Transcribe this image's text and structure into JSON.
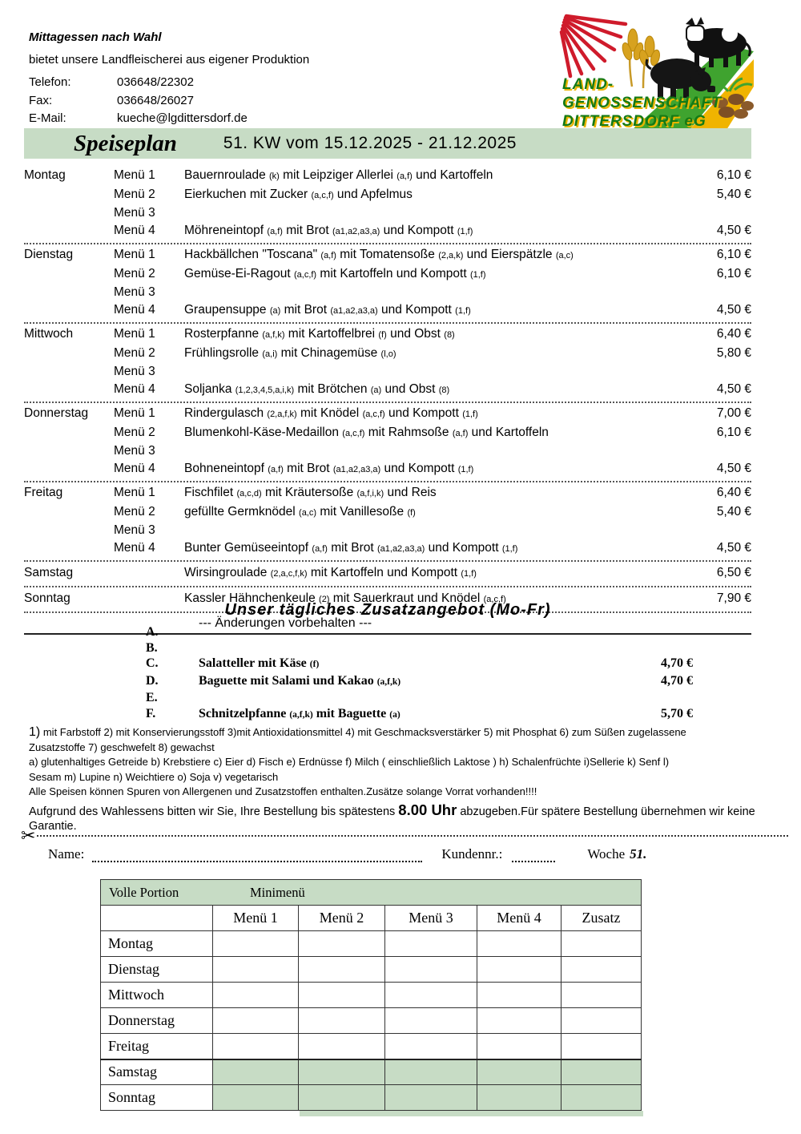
{
  "colors": {
    "green": "#c7dcc5",
    "logo_green": "#157a15",
    "logo_yellow": "#e9b400",
    "ray_red": "#cf1b2b"
  },
  "header": {
    "title": "Mittagessen nach Wahl",
    "subtitle": "bietet unsere Landfleischerei aus eigener Produktion",
    "contact": [
      {
        "label": "Telefon:",
        "value": "036648/22302"
      },
      {
        "label": "Fax:",
        "value": "036648/26027"
      },
      {
        "label": "E-Mail:",
        "value": "kueche@lgdittersdorf.de"
      }
    ],
    "logo_lines": [
      "LAND-",
      "GENOSSENSCHAFT",
      "DITTERSDORF eG"
    ],
    "logo_icons": [
      "sun-rays-icon",
      "wheat-icon",
      "pig-icon",
      "cow-icon",
      "potatoes-icon"
    ]
  },
  "banner": {
    "title": "Speiseplan",
    "week": "51. KW vom 15.12.2025 - 21.12.2025"
  },
  "menu": {
    "days": [
      {
        "day": "Montag",
        "rows": [
          {
            "label": "Menü 1",
            "desc": "Bauernroulade (k) mit Leipziger Allerlei (a,f) und Kartoffeln",
            "price": "6,10 €"
          },
          {
            "label": "Menü 2",
            "desc": "Eierkuchen mit Zucker (a,c,f) und Apfelmus",
            "price": "5,40 €"
          },
          {
            "label": "Menü 3",
            "desc": "",
            "price": ""
          },
          {
            "label": "Menü 4",
            "desc": "Möhreneintopf (a,f) mit Brot (a1,a2,a3,a) und Kompott (1,f)",
            "price": "4,50 €"
          }
        ]
      },
      {
        "day": "Dienstag",
        "rows": [
          {
            "label": "Menü 1",
            "desc": "Hackbällchen \"Toscana\" (a,f) mit Tomatensoße (2,a,k) und Eierspätzle (a,c)",
            "price": "6,10 €"
          },
          {
            "label": "Menü 2",
            "desc": "Gemüse-Ei-Ragout (a,c,f) mit Kartoffeln und Kompott (1,f)",
            "price": "6,10 €"
          },
          {
            "label": "Menü 3",
            "desc": "",
            "price": ""
          },
          {
            "label": "Menü 4",
            "desc": "Graupensuppe (a) mit Brot (a1,a2,a3,a) und Kompott (1,f)",
            "price": "4,50 €"
          }
        ]
      },
      {
        "day": "Mittwoch",
        "rows": [
          {
            "label": "Menü 1",
            "desc": "Rosterpfanne (a,f,k) mit Kartoffelbrei (f) und Obst (8)",
            "price": "6,40 €"
          },
          {
            "label": "Menü 2",
            "desc": "Frühlingsrolle (a,i) mit Chinagemüse (l,o)",
            "price": "5,80 €"
          },
          {
            "label": "Menü 3",
            "desc": "",
            "price": ""
          },
          {
            "label": "Menü 4",
            "desc": "Soljanka (1,2,3,4,5,a,i,k) mit Brötchen (a) und Obst (8)",
            "price": "4,50 €"
          }
        ]
      },
      {
        "day": "Donnerstag",
        "rows": [
          {
            "label": "Menü 1",
            "desc": "Rindergulasch (2,a,f,k) mit Knödel (a,c,f) und Kompott (1,f)",
            "price": "7,00 €"
          },
          {
            "label": "Menü 2",
            "desc": "Blumenkohl-Käse-Medaillon (a,c,f) mit Rahmsoße (a,f) und Kartoffeln",
            "price": "6,10 €"
          },
          {
            "label": "Menü 3",
            "desc": "",
            "price": ""
          },
          {
            "label": "Menü 4",
            "desc": "Bohneneintopf (a,f) mit Brot (a1,a2,a3,a) und Kompott (1,f)",
            "price": "4,50 €"
          }
        ]
      },
      {
        "day": "Freitag",
        "rows": [
          {
            "label": "Menü 1",
            "desc": "Fischfilet (a,c,d) mit Kräutersoße (a,f,i,k) und Reis",
            "price": "6,40 €"
          },
          {
            "label": "Menü 2",
            "desc": "gefüllte Germknödel  (a,c) mit Vanillesoße (f)",
            "price": "5,40 €"
          },
          {
            "label": "Menü 3",
            "desc": "",
            "price": ""
          },
          {
            "label": "Menü 4",
            "desc": "Bunter Gemüseeintopf (a,f) mit Brot (a1,a2,a3,a) und Kompott (1,f)",
            "price": "4,50 €"
          }
        ]
      },
      {
        "day": "Samstag",
        "rows": [
          {
            "label": "",
            "desc": "Wirsingroulade (2,a,c,f,k) mit Kartoffeln und Kompott (1,f)",
            "price": "6,50 €"
          }
        ]
      },
      {
        "day": "Sonntag",
        "rows": [
          {
            "label": "",
            "desc": "Kassler Hähnchenkeule (2) mit Sauerkraut und Knödel (a,c,f)",
            "price": "7,90 €"
          }
        ]
      }
    ],
    "notice": "--- Änderungen vorbehalten ---"
  },
  "extras": {
    "title": "Unser tägliches Zusatzangebot (Mo-Fr)",
    "items": [
      {
        "letter": "A.",
        "name": "",
        "price": ""
      },
      {
        "letter": "B.",
        "name": "",
        "price": ""
      },
      {
        "letter": "C.",
        "name": "Salatteller mit Käse (f)",
        "price": "4,70 €"
      },
      {
        "letter": "D.",
        "name": "Baguette mit Salami und Kakao (a,f,k)",
        "price": "4,70 €"
      },
      {
        "letter": "E.",
        "name": "",
        "price": ""
      },
      {
        "letter": "F.",
        "name": "Schnitzelpfanne (a,f,k) mit Baguette (a)",
        "price": "5,70 €"
      }
    ]
  },
  "footnotes": {
    "line1_big": "1)",
    "line1_rest": "  mit Farbstoff 2)  mit Konservierungsstoff 3)mit Antioxidationsmittel 4)  mit Geschmacksverstärker 5)  mit Phosphat 6)  zum Süßen zugelassene",
    "line2": "Zusatzstoffe 7)  geschwefelt 8)  gewachst",
    "line3": "a)  glutenhaltiges Getreide b)  Krebstiere c)  Eier d)  Fisch e)  Erdnüsse f)  Milch ( einschließlich Laktose ) h)  Schalenfrüchte i)Sellerie k)  Senf l)",
    "line4": "Sesam m)  Lupine n)  Weichtiere o)  Soja v)  vegetarisch",
    "line5": "Alle Speisen können Spuren von Allergenen und Zusatzstoffen enthalten.Zusätze solange Vorrat vorhanden!!!!",
    "last_pre": "Aufgrund des Wahlessens bitten wir Sie, Ihre Bestellung bis spätestens ",
    "last_bold": "8.00 Uhr",
    "last_post": " abzugeben.Für spätere Bestellung übernehmen wir keine Garantie."
  },
  "order": {
    "name_label": "Name:",
    "customer_label": "Kundennr.:",
    "week_label": "Woche",
    "week_value": "51.",
    "table": {
      "header_left": "Volle Portion",
      "header_right": "Minimenü",
      "columns": [
        "Menü 1",
        "Menü 2",
        "Menü 3",
        "Menü 4",
        "Zusatz"
      ],
      "days": [
        "Montag",
        "Dienstag",
        "Mittwoch",
        "Donnerstag",
        "Freitag",
        "Samstag",
        "Sonntag"
      ],
      "green_days": [
        "Samstag",
        "Sonntag"
      ]
    }
  }
}
